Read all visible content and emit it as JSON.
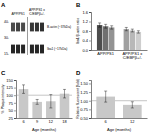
{
  "chart_data": [
    {
      "type": "blot",
      "title": "A",
      "categories": [
        "APP/PS1",
        "APP/PS1 x\nC/EBPβ+/-"
      ],
      "series": [
        {
          "name": "B-actin (~37kDa)",
          "colors": [
            "rgb(30%, 30%, 30%)",
            "rgb(26%, 26%, 26%)",
            "rgb(29%, 29%, 29%)",
            "rgb(22%, 22%, 22%)",
            "rgb(20%, 20%, 20%)",
            "rgb(19%, 19%, 19%)"
          ]
        },
        {
          "name": "Iba1 (~17kDa)",
          "color": "rgb(15%, 15%, 15%)"
        }
      ],
      "annotations": [
        "40-",
        "30-",
        "15-"
      ]
    },
    {
      "type": "bar",
      "title": "B",
      "ylabel": "Iba1/β-actin ratio",
      "categories": [
        "APP/PS1",
        "APP/PS1 x\nC/EBPβ+/-"
      ],
      "series": [
        {
          "colors": [
            "#4d4d4d",
            "#a0a0a0"
          ],
          "values": [
            1.05,
            0.88
          ],
          "errors": [
            0.09,
            0.07
          ]
        },
        {
          "colors": [
            "#707070",
            "#b8b8b8"
          ],
          "values": [
            1.0,
            0.82
          ],
          "errors": [
            0.08,
            0.06
          ]
        },
        {
          "colors": [
            "#939393",
            "#cecece"
          ],
          "values": [
            0.95,
            0.76
          ],
          "errors": [
            0.07,
            0.05
          ]
        }
      ],
      "ylim": [
        0,
        1.6
      ],
      "yticks": [
        {
          "value": 0,
          "label": "0.0"
        },
        0.4,
        0.8,
        1.2,
        1.6
      ]
    },
    {
      "type": "bar",
      "title": "C",
      "ylabel": "% Plaque intensity",
      "xlabel": "Age (months)",
      "categories": [
        "6",
        "9",
        "12",
        "18"
      ],
      "values": [
        120,
        78,
        80,
        105
      ],
      "errors": [
        14,
        8,
        22,
        14
      ],
      "color": "#c8c8c8",
      "hline": 100,
      "ylim": [
        25,
        150
      ],
      "yticks": [
        25,
        50,
        75,
        100,
        125,
        150
      ]
    },
    {
      "type": "bar",
      "title": "D",
      "ylabel": "Relative fluorescent (fold)",
      "xlabel": "Age (months)",
      "categories": [
        "6",
        "12"
      ],
      "values": [
        1.12,
        0.88
      ],
      "errors": [
        0.16,
        0.09
      ],
      "color": "#c8c8c8",
      "hline": 1.0,
      "ylim": [
        0.5,
        1.6
      ],
      "yticks": [
        {
          "value": 0.5,
          "label": "0.50"
        },
        0.75,
        {
          "value": 1.0,
          "label": "1.00"
        },
        1.25,
        {
          "value": 1.5,
          "label": "1.50"
        }
      ]
    }
  ]
}
